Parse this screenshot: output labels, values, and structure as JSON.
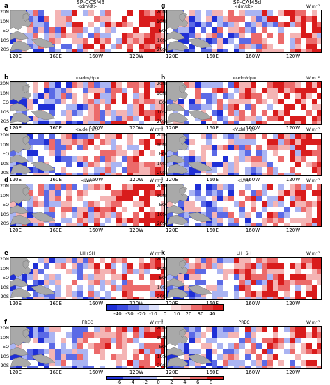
{
  "columns": {
    "left": "SP-CCSM3",
    "right": "SP-CAM5d"
  },
  "panels": [
    {
      "letter": "a",
      "var": "<dm/dt>",
      "unit": "",
      "col": 0,
      "row": 0
    },
    {
      "letter": "g",
      "var": "<dm/dt>",
      "unit": "W m⁻²",
      "col": 1,
      "row": 0
    },
    {
      "letter": "b",
      "var": "<ωdm/dp>",
      "unit": "",
      "col": 0,
      "row": 1
    },
    {
      "letter": "h",
      "var": "<ωdm/dp>",
      "unit": "W m⁻²",
      "col": 1,
      "row": 1
    },
    {
      "letter": "c",
      "var": "<V.del(m)>",
      "unit": "W m⁻²",
      "col": 0,
      "row": 2
    },
    {
      "letter": "i",
      "var": "<V.del(m)>",
      "unit": "W m⁻²",
      "col": 1,
      "row": 2
    },
    {
      "letter": "d",
      "var": "<LW>",
      "unit": "W m⁻²",
      "col": 0,
      "row": 3
    },
    {
      "letter": "j",
      "var": "<LW>",
      "unit": "W m⁻²",
      "col": 1,
      "row": 3
    },
    {
      "letter": "e",
      "var": "LH+SH",
      "unit": "W m⁻²",
      "col": 0,
      "row": 4
    },
    {
      "letter": "k",
      "var": "LH+SH",
      "unit": "W m⁻²",
      "col": 1,
      "row": 4
    },
    {
      "letter": "f",
      "var": "PREC",
      "unit": "W m⁻²",
      "col": 0,
      "row": 5
    },
    {
      "letter": "l",
      "var": "PREC",
      "unit": "W m⁻²",
      "col": 1,
      "row": 5
    }
  ],
  "lat_ticks": [
    "20N",
    "10N",
    "EQ",
    "10S",
    "20S"
  ],
  "lon_ticks": [
    "120E",
    "160E",
    "160W",
    "120W"
  ],
  "colorbar_top": {
    "ticks": [
      "-40",
      "-30",
      "-20",
      "-10",
      "0",
      "10",
      "20",
      "30",
      "40"
    ]
  },
  "colorbar_bottom": {
    "ticks": [
      "-6",
      "-4",
      "-2",
      "0",
      "2",
      "4",
      "6",
      "8"
    ]
  },
  "colors": {
    "strong_blue": "#1f2fd6",
    "mid_blue": "#5b6ae6",
    "light_blue": "#aab4f2",
    "white": "#ffffff",
    "light_red": "#f4b4b4",
    "mid_red": "#ec6a6a",
    "strong_red": "#d91c1c",
    "land": "#a9a9a9"
  }
}
